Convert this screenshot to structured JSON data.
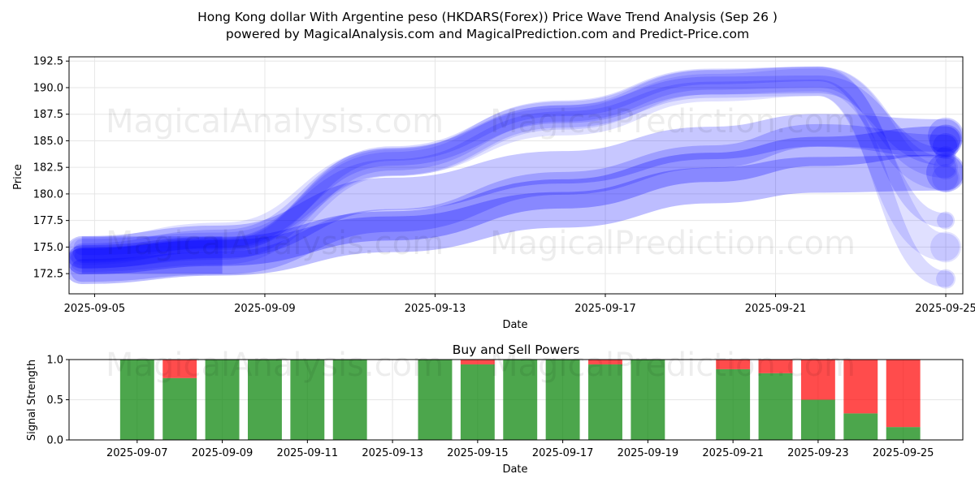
{
  "title_line1": "Hong Kong dollar With Argentine peso (HKDARS(Forex)) Price Wave Trend Analysis (Sep 26 )",
  "title_line2": "powered by MagicalAnalysis.com and MagicalPrediction.com and Predict-Price.com",
  "watermarks": [
    "MagicalAnalysis.com",
    "MagicalPrediction.com"
  ],
  "colors": {
    "wave": "#0000ff",
    "buy": "#008000",
    "sell": "#ff0000",
    "axis": "#000000",
    "grid": "#e6e6e6"
  },
  "chart_data": [
    {
      "type": "area",
      "title": "",
      "xlabel": "Date",
      "ylabel": "Price",
      "xlim": [
        "2025-09-04.4",
        "2025-09-25.4"
      ],
      "ylim": [
        170.6,
        192.9
      ],
      "x_ticks": [
        "2025-09-05",
        "2025-09-09",
        "2025-09-13",
        "2025-09-17",
        "2025-09-21",
        "2025-09-25"
      ],
      "x_tick_days": [
        5,
        9,
        13,
        17,
        21,
        25
      ],
      "y_ticks": [
        172.5,
        175.0,
        177.5,
        180.0,
        182.5,
        185.0,
        187.5,
        190.0,
        192.5
      ],
      "grid": true,
      "series": [
        {
          "name": "wave-upper-1",
          "x": [
            4.7,
            8.0,
            12.0,
            16.0,
            19.5,
            22.0,
            25.0
          ],
          "y": [
            174.5,
            175.8,
            183.5,
            187.5,
            190.2,
            190.3,
            183.5
          ]
        },
        {
          "name": "wave-upper-2",
          "x": [
            4.7,
            8.0,
            12.0,
            16.0,
            19.5,
            22.0,
            25.0
          ],
          "y": [
            174.0,
            174.8,
            183.2,
            187.8,
            190.8,
            191.0,
            182.5
          ]
        },
        {
          "name": "wave-upper-3",
          "x": [
            4.7,
            8.0,
            12.0,
            16.0,
            19.5,
            22.0,
            25.0
          ],
          "y": [
            173.8,
            174.5,
            182.8,
            187.2,
            190.5,
            190.8,
            181.5
          ]
        },
        {
          "name": "wave-upper-4",
          "x": [
            4.7,
            8.0,
            12.0,
            16.0,
            19.5,
            22.0,
            25.0
          ],
          "y": [
            174.2,
            175.2,
            183.8,
            188.0,
            191.0,
            191.3,
            177.5
          ]
        },
        {
          "name": "wave-upper-5",
          "x": [
            4.7,
            8.0,
            12.0,
            16.0,
            19.5,
            22.0,
            25.0
          ],
          "y": [
            174.6,
            176.0,
            183.0,
            186.8,
            190.0,
            190.5,
            175.0
          ]
        },
        {
          "name": "wave-upper-6",
          "x": [
            4.7,
            8.0,
            12.0,
            16.0,
            19.5,
            22.0,
            25.0
          ],
          "y": [
            175.0,
            175.6,
            182.5,
            187.0,
            189.8,
            190.0,
            172.0
          ]
        },
        {
          "name": "wave-lower-1",
          "x": [
            4.7,
            8.0,
            12.0,
            16.0,
            19.5,
            22.0,
            25.0
          ],
          "y": [
            174.5,
            175.5,
            180.0,
            182.5,
            184.8,
            186.0,
            185.5
          ]
        },
        {
          "name": "wave-lower-2",
          "x": [
            4.7,
            8.0,
            12.0,
            16.0,
            19.5,
            22.0,
            25.0
          ],
          "y": [
            173.8,
            174.6,
            177.0,
            180.0,
            182.5,
            184.0,
            185.0
          ]
        },
        {
          "name": "wave-lower-3",
          "x": [
            4.7,
            8.0,
            12.0,
            16.0,
            19.5,
            22.0,
            25.0
          ],
          "y": [
            173.2,
            174.0,
            176.2,
            178.5,
            180.8,
            181.8,
            182.0
          ]
        },
        {
          "name": "wave-lower-4",
          "x": [
            4.7,
            8.0,
            12.0,
            16.0,
            19.5,
            22.0,
            25.0
          ],
          "y": [
            172.8,
            173.5,
            177.5,
            181.0,
            183.5,
            185.5,
            184.5
          ]
        }
      ]
    },
    {
      "type": "bar",
      "title": "Buy and Sell Powers",
      "xlabel": "Date",
      "ylabel": "Signal Strength",
      "ylim": [
        0,
        1.0
      ],
      "y_ticks": [
        0.0,
        0.5,
        1.0
      ],
      "x_ticks": [
        "2025-09-07",
        "2025-09-09",
        "2025-09-11",
        "2025-09-13",
        "2025-09-15",
        "2025-09-17",
        "2025-09-19",
        "2025-09-21",
        "2025-09-23",
        "2025-09-25"
      ],
      "x_tick_days": [
        7,
        9,
        11,
        13,
        15,
        17,
        19,
        21,
        23,
        25
      ],
      "xlim_days": [
        5.4,
        26.4
      ],
      "bars": [
        {
          "day": 7,
          "buy": 1.0,
          "sell": 0.0
        },
        {
          "day": 8,
          "buy": 0.77,
          "sell": 0.23
        },
        {
          "day": 9,
          "buy": 1.0,
          "sell": 0.0
        },
        {
          "day": 10,
          "buy": 1.0,
          "sell": 0.0
        },
        {
          "day": 11,
          "buy": 1.0,
          "sell": 0.0
        },
        {
          "day": 12,
          "buy": 1.0,
          "sell": 0.0
        },
        {
          "day": 14,
          "buy": 1.0,
          "sell": 0.0
        },
        {
          "day": 15,
          "buy": 0.94,
          "sell": 0.06
        },
        {
          "day": 16,
          "buy": 1.0,
          "sell": 0.0
        },
        {
          "day": 17,
          "buy": 1.0,
          "sell": 0.0
        },
        {
          "day": 18,
          "buy": 0.94,
          "sell": 0.06
        },
        {
          "day": 19,
          "buy": 1.0,
          "sell": 0.0
        },
        {
          "day": 21,
          "buy": 0.88,
          "sell": 0.12
        },
        {
          "day": 22,
          "buy": 0.83,
          "sell": 0.17
        },
        {
          "day": 23,
          "buy": 0.5,
          "sell": 0.5
        },
        {
          "day": 24,
          "buy": 0.33,
          "sell": 0.67
        },
        {
          "day": 25,
          "buy": 0.16,
          "sell": 0.84
        }
      ]
    }
  ]
}
